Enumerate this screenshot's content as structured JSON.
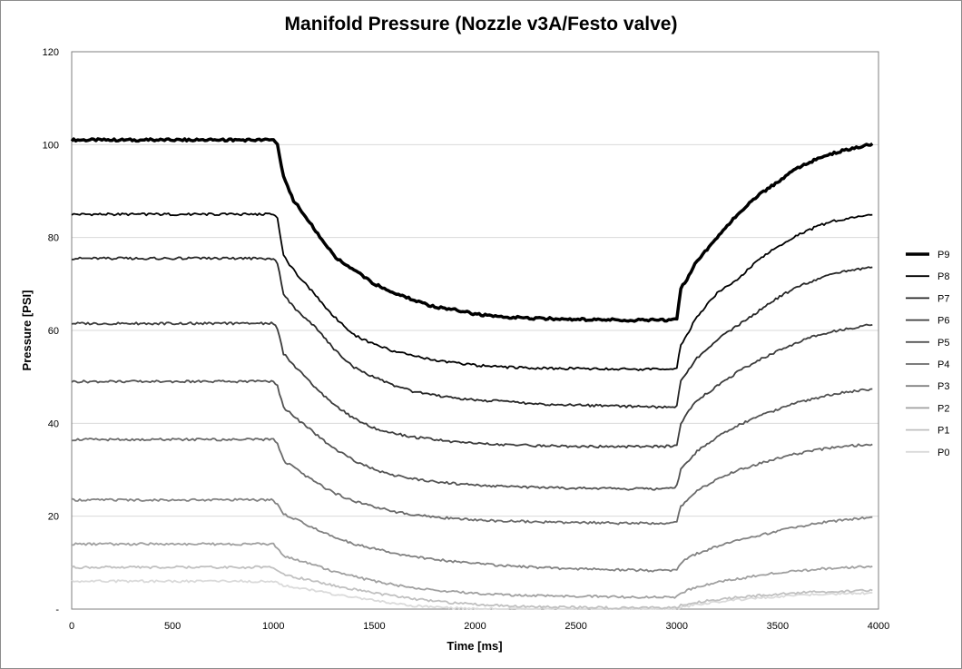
{
  "chart_data": {
    "type": "line",
    "title": "Manifold Pressure (Nozzle v3A/Festo valve)",
    "xlabel": "Time [ms]",
    "ylabel": "Pressure [PSI]",
    "xlim": [
      0,
      4000
    ],
    "ylim": [
      0,
      120
    ],
    "xticks": [
      "0",
      "500",
      "1000",
      "1500",
      "2000",
      "2500",
      "3000",
      "3500",
      "4000"
    ],
    "yticks": [
      "-",
      "20",
      "40",
      "60",
      "80",
      "100",
      "120"
    ],
    "grid": "horizontal",
    "legend_position": "right",
    "x": [
      0,
      200,
      400,
      600,
      800,
      1000,
      1020,
      1050,
      1100,
      1200,
      1300,
      1400,
      1500,
      1600,
      1700,
      1800,
      1900,
      2000,
      2100,
      2200,
      2300,
      2400,
      2500,
      2600,
      2700,
      2800,
      2900,
      2990,
      3000,
      3020,
      3050,
      3100,
      3200,
      3300,
      3400,
      3500,
      3600,
      3700,
      3800,
      3900,
      3970
    ],
    "series": [
      {
        "name": "P9",
        "color": "#000000",
        "width": 3.5,
        "values": [
          101,
          101,
          101,
          101,
          101,
          101,
          100,
          93,
          88,
          82,
          76,
          73,
          70,
          68,
          66.5,
          65,
          64.5,
          63.5,
          63,
          62.8,
          62.6,
          62.5,
          62.4,
          62.3,
          62.3,
          62.2,
          62.2,
          62.3,
          62.4,
          69,
          71,
          75,
          80,
          85,
          89,
          92,
          95,
          97,
          98.5,
          99.5,
          100.2
        ]
      },
      {
        "name": "P8",
        "color": "#000000",
        "width": 1.8,
        "values": [
          85,
          85,
          85,
          85,
          85,
          85,
          84,
          76,
          73,
          68,
          63,
          59,
          57,
          55.5,
          54.5,
          53.5,
          53,
          52.5,
          52.2,
          52,
          51.9,
          51.8,
          51.8,
          51.7,
          51.7,
          51.6,
          51.6,
          51.7,
          52,
          57,
          59,
          63,
          68,
          71,
          75,
          78,
          80.5,
          82.5,
          83.8,
          84.5,
          84.9
        ]
      },
      {
        "name": "P7",
        "color": "#262626",
        "width": 1.8,
        "values": [
          75.5,
          75.5,
          75.5,
          75.5,
          75.5,
          75.5,
          74.5,
          68,
          65,
          61,
          56,
          52,
          50,
          48,
          46.8,
          46,
          45.5,
          45,
          44.8,
          44.5,
          44.2,
          44,
          43.9,
          43.8,
          43.7,
          43.6,
          43.5,
          43.6,
          44,
          49,
          51,
          54,
          58,
          61,
          64,
          67,
          69.5,
          71,
          72.5,
          73.2,
          73.6
        ]
      },
      {
        "name": "P6",
        "color": "#3d3d3d",
        "width": 1.8,
        "values": [
          61.5,
          61.5,
          61.5,
          61.5,
          61.5,
          61.5,
          60.5,
          55,
          52.5,
          48,
          44,
          41,
          39,
          37.8,
          37,
          36.5,
          36,
          35.7,
          35.5,
          35.3,
          35.2,
          35.1,
          35,
          35,
          35,
          35,
          35,
          35.1,
          35.5,
          40,
          42,
          45,
          48,
          51,
          53.5,
          55.5,
          57.5,
          59,
          60,
          60.8,
          61.2
        ]
      },
      {
        "name": "P5",
        "color": "#535353",
        "width": 1.8,
        "values": [
          49,
          49,
          49,
          49,
          49,
          49,
          48,
          43.5,
          41.5,
          38,
          34.5,
          32,
          30,
          28.8,
          28,
          27.5,
          27,
          26.7,
          26.5,
          26.3,
          26.2,
          26.1,
          26,
          26,
          25.9,
          25.9,
          25.9,
          26,
          26.5,
          30,
          31.5,
          34,
          37,
          39.5,
          41.5,
          43,
          44.5,
          45.5,
          46.5,
          47,
          47.4
        ]
      },
      {
        "name": "P4",
        "color": "#6a6a6a",
        "width": 1.8,
        "values": [
          36.5,
          36.5,
          36.5,
          36.5,
          36.5,
          36.5,
          35.5,
          32,
          30.5,
          27.5,
          25,
          23.2,
          22,
          21,
          20.3,
          19.8,
          19.5,
          19.2,
          19,
          18.9,
          18.8,
          18.7,
          18.6,
          18.6,
          18.5,
          18.5,
          18.5,
          18.6,
          19,
          22,
          23.5,
          25.5,
          28,
          29.8,
          31.2,
          32.5,
          33.5,
          34.3,
          34.9,
          35.3,
          35.5
        ]
      },
      {
        "name": "P3",
        "color": "#828282",
        "width": 1.8,
        "values": [
          23.5,
          23.5,
          23.5,
          23.5,
          23.5,
          23.5,
          22.5,
          20.5,
          19.5,
          17.5,
          15.5,
          14,
          13,
          12,
          11.2,
          10.7,
          10.2,
          9.8,
          9.5,
          9.2,
          9,
          8.8,
          8.7,
          8.6,
          8.5,
          8.4,
          8.3,
          8.3,
          8.5,
          10,
          10.8,
          12,
          13.5,
          14.8,
          15.8,
          16.8,
          17.7,
          18.5,
          19,
          19.5,
          19.8
        ]
      },
      {
        "name": "P2",
        "color": "#a0a0a0",
        "width": 1.8,
        "values": [
          14,
          14,
          14,
          14,
          14,
          14,
          13,
          11.5,
          10.8,
          9.5,
          8,
          7,
          6,
          5.2,
          4.6,
          4.1,
          3.7,
          3.4,
          3.2,
          3,
          2.9,
          2.8,
          2.7,
          2.7,
          2.6,
          2.6,
          2.6,
          2.6,
          2.7,
          3.5,
          4,
          4.8,
          5.8,
          6.5,
          7.2,
          7.8,
          8.2,
          8.6,
          8.9,
          9.1,
          9.2
        ]
      },
      {
        "name": "P1",
        "color": "#c0c0c0",
        "width": 1.8,
        "values": [
          9,
          9,
          9,
          9,
          9,
          9,
          8.3,
          7.5,
          7,
          6,
          5,
          4.2,
          3.5,
          2.8,
          2.2,
          1.7,
          1.3,
          1,
          0.8,
          0.6,
          0.5,
          0.4,
          0.4,
          0.3,
          0.3,
          0.3,
          0.3,
          0.3,
          0.4,
          0.8,
          1,
          1.5,
          2,
          2.5,
          2.9,
          3.2,
          3.5,
          3.7,
          3.8,
          3.9,
          4
        ]
      },
      {
        "name": "P0",
        "color": "#dadada",
        "width": 1.8,
        "values": [
          6,
          6,
          6,
          6,
          6,
          6,
          5.6,
          5,
          4.7,
          4,
          3.2,
          2.5,
          1.8,
          1.2,
          0.7,
          0.4,
          0.2,
          0.1,
          0.05,
          0,
          0,
          0,
          0,
          0,
          0,
          0,
          0,
          0,
          0.1,
          0.4,
          0.6,
          1,
          1.5,
          2,
          2.4,
          2.7,
          3,
          3.2,
          3.3,
          3.4,
          3.5
        ]
      }
    ]
  }
}
